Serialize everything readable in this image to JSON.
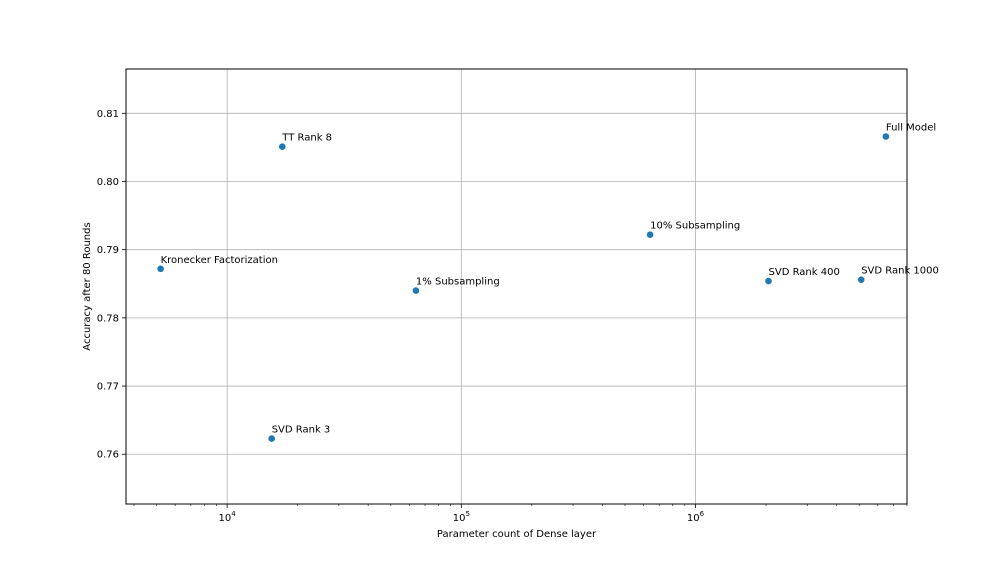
{
  "chart_data": {
    "type": "scatter",
    "xlabel": "Parameter count of Dense layer",
    "ylabel": "Accuracy after 80 Rounds",
    "xscale": "log",
    "xlim": [
      3700,
      8000000
    ],
    "ylim": [
      0.7527,
      0.8165
    ],
    "grid": true,
    "marker_color": "#1f77b4",
    "x_major_ticks": [
      {
        "value": 10000,
        "base": "10",
        "exp": "4"
      },
      {
        "value": 100000,
        "base": "10",
        "exp": "5"
      },
      {
        "value": 1000000,
        "base": "10",
        "exp": "6"
      }
    ],
    "y_ticks": [
      {
        "value": 0.76,
        "label": "0.76"
      },
      {
        "value": 0.77,
        "label": "0.77"
      },
      {
        "value": 0.78,
        "label": "0.78"
      },
      {
        "value": 0.79,
        "label": "0.79"
      },
      {
        "value": 0.8,
        "label": "0.80"
      },
      {
        "value": 0.81,
        "label": "0.81"
      }
    ],
    "points": [
      {
        "label": "Kronecker Factorization",
        "x": 5200,
        "y": 0.7872
      },
      {
        "label": "TT Rank 8",
        "x": 17200,
        "y": 0.8051
      },
      {
        "label": "SVD Rank 3",
        "x": 15500,
        "y": 0.7623
      },
      {
        "label": "1% Subsampling",
        "x": 64000,
        "y": 0.784
      },
      {
        "label": "10% Subsampling",
        "x": 640000,
        "y": 0.7922
      },
      {
        "label": "SVD Rank 400",
        "x": 2050000,
        "y": 0.7854
      },
      {
        "label": "SVD Rank 1000",
        "x": 5100000,
        "y": 0.7856
      },
      {
        "label": "Full Model",
        "x": 6500000,
        "y": 0.8066
      }
    ]
  }
}
